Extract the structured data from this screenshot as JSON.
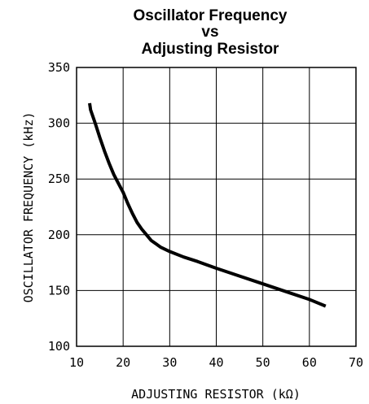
{
  "chart_data": {
    "type": "line",
    "title_lines": [
      "Oscillator Frequency",
      "vs",
      "Adjusting Resistor"
    ],
    "xlabel": "ADJUSTING RESISTOR (kΩ)",
    "ylabel": "OSCILLATOR FREQUENCY (kHz)",
    "xlim": [
      10,
      70
    ],
    "ylim": [
      100,
      350
    ],
    "x_ticks": [
      10,
      20,
      30,
      40,
      50,
      60,
      70
    ],
    "y_ticks": [
      100,
      150,
      200,
      250,
      300,
      350
    ],
    "grid": true,
    "legend": "none",
    "series": [
      {
        "x": [
          12.8,
          13.0,
          14.0,
          15.0,
          16.0,
          17.0,
          18.0,
          19.0,
          20.0,
          21.0,
          22.0,
          23.0,
          24.0,
          25.0,
          26.0,
          27.0,
          28.0,
          30.0,
          33.0,
          36.0,
          40.0,
          45.0,
          50.0,
          55.0,
          60.0,
          63.5
        ],
        "y": [
          318,
          312,
          300,
          287,
          275,
          264,
          254,
          246,
          238,
          228,
          219,
          211,
          205,
          200,
          195,
          192,
          189,
          185,
          180,
          176,
          170,
          163,
          156,
          149,
          142,
          136
        ]
      }
    ]
  }
}
